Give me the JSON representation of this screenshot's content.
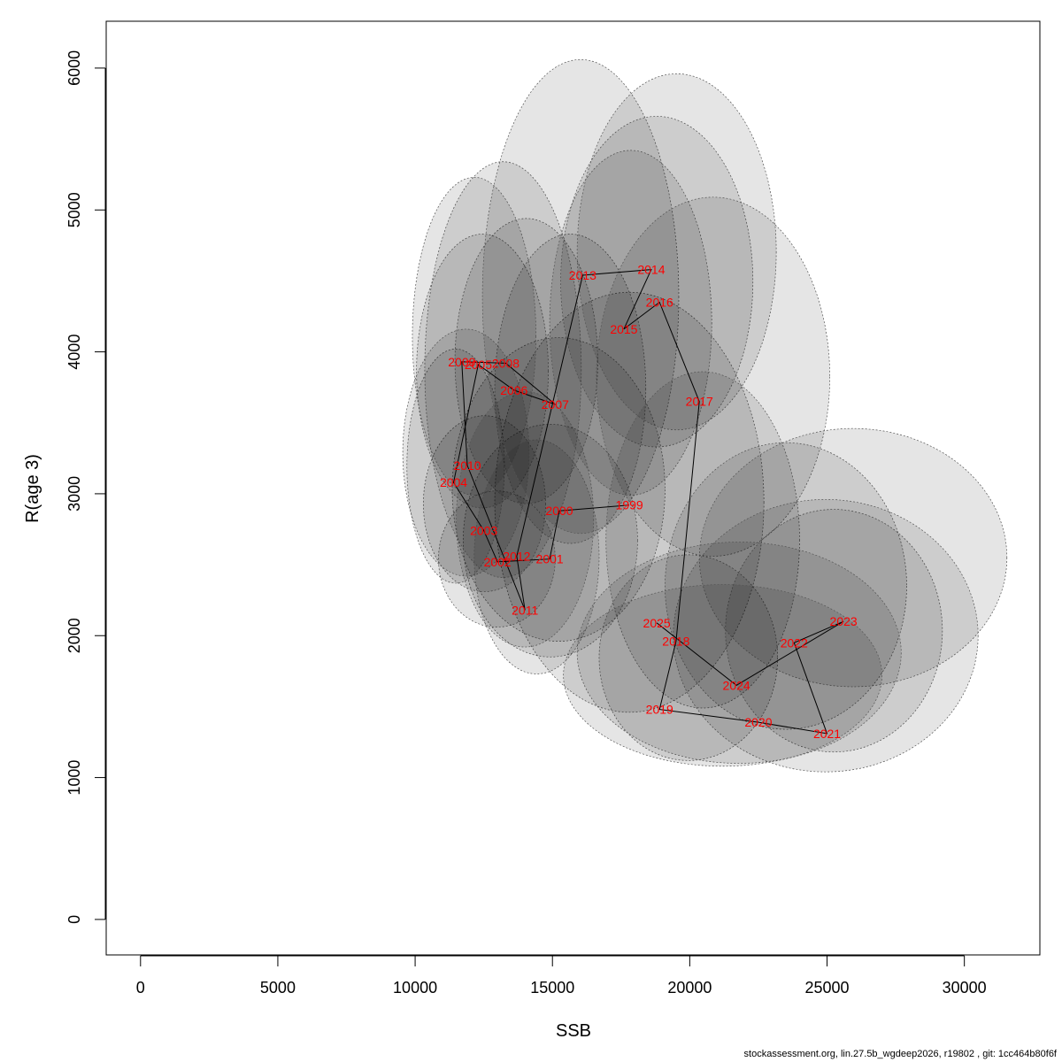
{
  "footer": "stockassessment.org, lin.27.5b_wgdeep2026, r19802 , git: 1cc464b80f6f",
  "chart_data": {
    "type": "scatter",
    "title": "",
    "xlabel": "SSB",
    "ylabel": "R(age 3)",
    "xlim": [
      -1250,
      32750
    ],
    "ylim": [
      -250,
      6330
    ],
    "xticks": [
      0,
      5000,
      10000,
      15000,
      20000,
      25000,
      30000
    ],
    "yticks": [
      0,
      1000,
      2000,
      3000,
      4000,
      5000,
      6000
    ],
    "grid": false,
    "connected": true,
    "point_color": "#ff0000",
    "line_color": "#000000",
    "ellipse_fill": "#000000",
    "ellipse_opacity": 0.1,
    "points": [
      {
        "year": "1999",
        "ssb": 17800,
        "r": 2920,
        "ssb_range": [
          12900,
          22700
        ],
        "r_range": [
          1460,
          4420
        ]
      },
      {
        "year": "2000",
        "ssb": 15250,
        "r": 2880,
        "ssb_range": [
          11350,
          19100
        ],
        "r_range": [
          1960,
          4100
        ]
      },
      {
        "year": "2001",
        "ssb": 14900,
        "r": 2540,
        "ssb_range": [
          11750,
          18100
        ],
        "r_range": [
          1850,
          3490
        ]
      },
      {
        "year": "2002",
        "ssb": 13000,
        "r": 2520,
        "ssb_range": [
          10850,
          15100
        ],
        "r_range": [
          2060,
          3020
        ]
      },
      {
        "year": "2003",
        "ssb": 12500,
        "r": 2740,
        "ssb_range": [
          10300,
          14750
        ],
        "r_range": [
          2310,
          3550
        ]
      },
      {
        "year": "2004",
        "ssb": 11400,
        "r": 3080,
        "ssb_range": [
          9700,
          13250
        ],
        "r_range": [
          2370,
          4020
        ]
      },
      {
        "year": "2005",
        "ssb": 12300,
        "r": 3910,
        "ssb_range": [
          10050,
          14850
        ],
        "r_range": [
          2900,
          4830
        ]
      },
      {
        "year": "2006",
        "ssb": 13600,
        "r": 3730,
        "ssb_range": [
          11450,
          16650
        ],
        "r_range": [
          2930,
          4940
        ]
      },
      {
        "year": "2007",
        "ssb": 15100,
        "r": 3630,
        "ssb_range": [
          12900,
          18400
        ],
        "r_range": [
          2650,
          4830
        ]
      },
      {
        "year": "2008",
        "ssb": 13300,
        "r": 3920,
        "ssb_range": [
          10350,
          16050
        ],
        "r_range": [
          2410,
          5340
        ]
      },
      {
        "year": "2009",
        "ssb": 11700,
        "r": 3930,
        "ssb_range": [
          9900,
          14400
        ],
        "r_range": [
          2990,
          5230
        ]
      },
      {
        "year": "2010",
        "ssb": 11900,
        "r": 3200,
        "ssb_range": [
          9550,
          14150
        ],
        "r_range": [
          2420,
          4160
        ]
      },
      {
        "year": "2011",
        "ssb": 14000,
        "r": 2180,
        "ssb_range": [
          12150,
          16700
        ],
        "r_range": [
          1730,
          3380
        ]
      },
      {
        "year": "2012",
        "ssb": 13700,
        "r": 2560,
        "ssb_range": [
          11500,
          16500
        ],
        "r_range": [
          1920,
          3720
        ]
      },
      {
        "year": "2013",
        "ssb": 16100,
        "r": 4540,
        "ssb_range": [
          12450,
          19600
        ],
        "r_range": [
          2720,
          6060
        ]
      },
      {
        "year": "2014",
        "ssb": 18600,
        "r": 4580,
        "ssb_range": [
          15300,
          22300
        ],
        "r_range": [
          3330,
          5660
        ]
      },
      {
        "year": "2015",
        "ssb": 17600,
        "r": 4160,
        "ssb_range": [
          14900,
          20800
        ],
        "r_range": [
          2990,
          5420
        ]
      },
      {
        "year": "2016",
        "ssb": 18900,
        "r": 4350,
        "ssb_range": [
          15900,
          23150
        ],
        "r_range": [
          3450,
          5960
        ]
      },
      {
        "year": "2017",
        "ssb": 20350,
        "r": 3650,
        "ssb_range": [
          16600,
          25100
        ],
        "r_range": [
          2560,
          5090
        ]
      },
      {
        "year": "2018",
        "ssb": 19500,
        "r": 1960,
        "ssb_range": [
          16950,
          24000
        ],
        "r_range": [
          1490,
          3860
        ]
      },
      {
        "year": "2019",
        "ssb": 18900,
        "r": 1480,
        "ssb_range": [
          16700,
          23200
        ],
        "r_range": [
          1120,
          2570
        ]
      },
      {
        "year": "2020",
        "ssb": 22500,
        "r": 1390,
        "ssb_range": [
          19100,
          27900
        ],
        "r_range": [
          1340,
          3360
        ]
      },
      {
        "year": "2021",
        "ssb": 25000,
        "r": 1310,
        "ssb_range": [
          21300,
          29200
        ],
        "r_range": [
          1180,
          2890
        ]
      },
      {
        "year": "2022",
        "ssb": 23800,
        "r": 1950,
        "ssb_range": [
          20350,
          31550
        ],
        "r_range": [
          1640,
          3460
        ]
      },
      {
        "year": "2023",
        "ssb": 25600,
        "r": 2100,
        "ssb_range": [
          19400,
          30500
        ],
        "r_range": [
          1040,
          2960
        ]
      },
      {
        "year": "2024",
        "ssb": 21700,
        "r": 1650,
        "ssb_range": [
          15900,
          27700
        ],
        "r_range": [
          1100,
          2660
        ]
      },
      {
        "year": "2025",
        "ssb": 18800,
        "r": 2090,
        "ssb_range": [
          15400,
          27000
        ],
        "r_range": [
          1080,
          2360
        ]
      }
    ]
  }
}
